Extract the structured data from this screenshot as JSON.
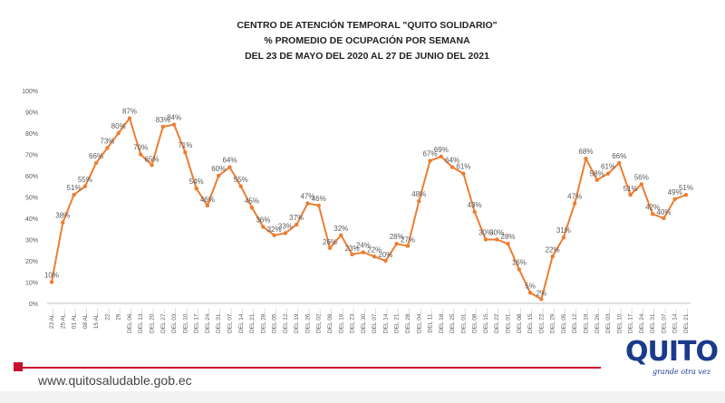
{
  "title_lines": [
    "CENTRO DE ATENCIÓN TEMPORAL \"QUITO SOLIDARIO\"",
    "%  PROMEDIO DE OCUPACIÓN POR SEMANA",
    "DEL 23 DE MAYO DEL  2020 AL 27 DE JUNIO DEL 2021"
  ],
  "footer": {
    "url": "www.quitosaludable.gob.ec"
  },
  "logo": {
    "text": "QUITO",
    "tagline": "grande otra vez"
  },
  "colors": {
    "series": "#ed7d31",
    "text": "#595959",
    "accent_red": "#c8102e",
    "brand_blue": "#1a3a8c"
  },
  "chart_data": {
    "type": "line",
    "ylim": [
      0,
      100
    ],
    "y_ticks": [
      "0%",
      "10%",
      "20%",
      "30%",
      "40%",
      "50%",
      "60%",
      "70%",
      "80%",
      "90%",
      "100%"
    ],
    "grid": false,
    "legend": "none",
    "categories": [
      "23 AL…",
      "25 AL…",
      "01 AL…",
      "08 AL…",
      "15 AL…",
      "22…",
      "29…",
      "DEL 06…",
      "DEL 13…",
      "DEL 20…",
      "DEL 27…",
      "DEL 03…",
      "DEL 10…",
      "DEL 17…",
      "DEL 24…",
      "DEL 31…",
      "DEL 07…",
      "DEL 14…",
      "DEL 21…",
      "DEL 28…",
      "DEL 05…",
      "DEL 12…",
      "DEL 19…",
      "DEL 26…",
      "DEL 02…",
      "DEL 09…",
      "DEL 16…",
      "DEL 23…",
      "DEL 30…",
      "DEL 07…",
      "DEL 14…",
      "DEL 21…",
      "DEL 28…",
      "DEL 04…",
      "DEL 11…",
      "DEL 18…",
      "DEL 25…",
      "DEL 01…",
      "DEL 08…",
      "DEL 15…",
      "DEL 22…",
      "DEL 01…",
      "DEL 08…",
      "DEL 15…",
      "DEL 22…",
      "DEL 29…",
      "DEL 05…",
      "DEL 12…",
      "DEL 19…",
      "DEL 26…",
      "DEL 03…",
      "DEL 10…",
      "DEL 17…",
      "DEL 24…",
      "DEL 31…",
      "DEL 07…",
      "DEL 14…",
      "DEL 21…"
    ],
    "values": [
      10,
      38,
      51,
      55,
      66,
      73,
      80,
      87,
      70,
      65,
      83,
      84,
      71,
      54,
      46,
      60,
      64,
      55,
      45,
      36,
      32,
      33,
      37,
      47,
      46,
      26,
      32,
      23,
      24,
      22,
      20,
      28,
      27,
      48,
      67,
      69,
      64,
      61,
      43,
      30,
      30,
      28,
      16,
      5,
      2,
      22,
      31,
      47,
      68,
      58,
      61,
      66,
      51,
      56,
      42,
      40,
      49,
      51
    ],
    "labels": [
      "10%",
      "38%",
      "51%",
      "55%",
      "66%",
      "73%",
      "80%",
      "87%",
      "70%",
      "65%",
      "83%",
      "84%",
      "71%",
      "54%",
      "46%",
      "60%",
      "64%",
      "55%",
      "45%",
      "36%",
      "32%",
      "33%",
      "37%",
      "47%",
      "46%",
      "26%",
      "32%",
      "23%",
      "24%",
      "22%",
      "20%",
      "28%",
      "27%",
      "48%",
      "67%",
      "69%",
      "64%",
      "61%",
      "43%",
      "30%",
      "30%",
      "28%",
      "16%",
      "5%",
      "2%",
      "22%",
      "31%",
      "47%",
      "68%",
      "58%",
      "61%",
      "66%",
      "51%",
      "56%",
      "42%",
      "40%",
      "49%",
      "51%"
    ]
  }
}
